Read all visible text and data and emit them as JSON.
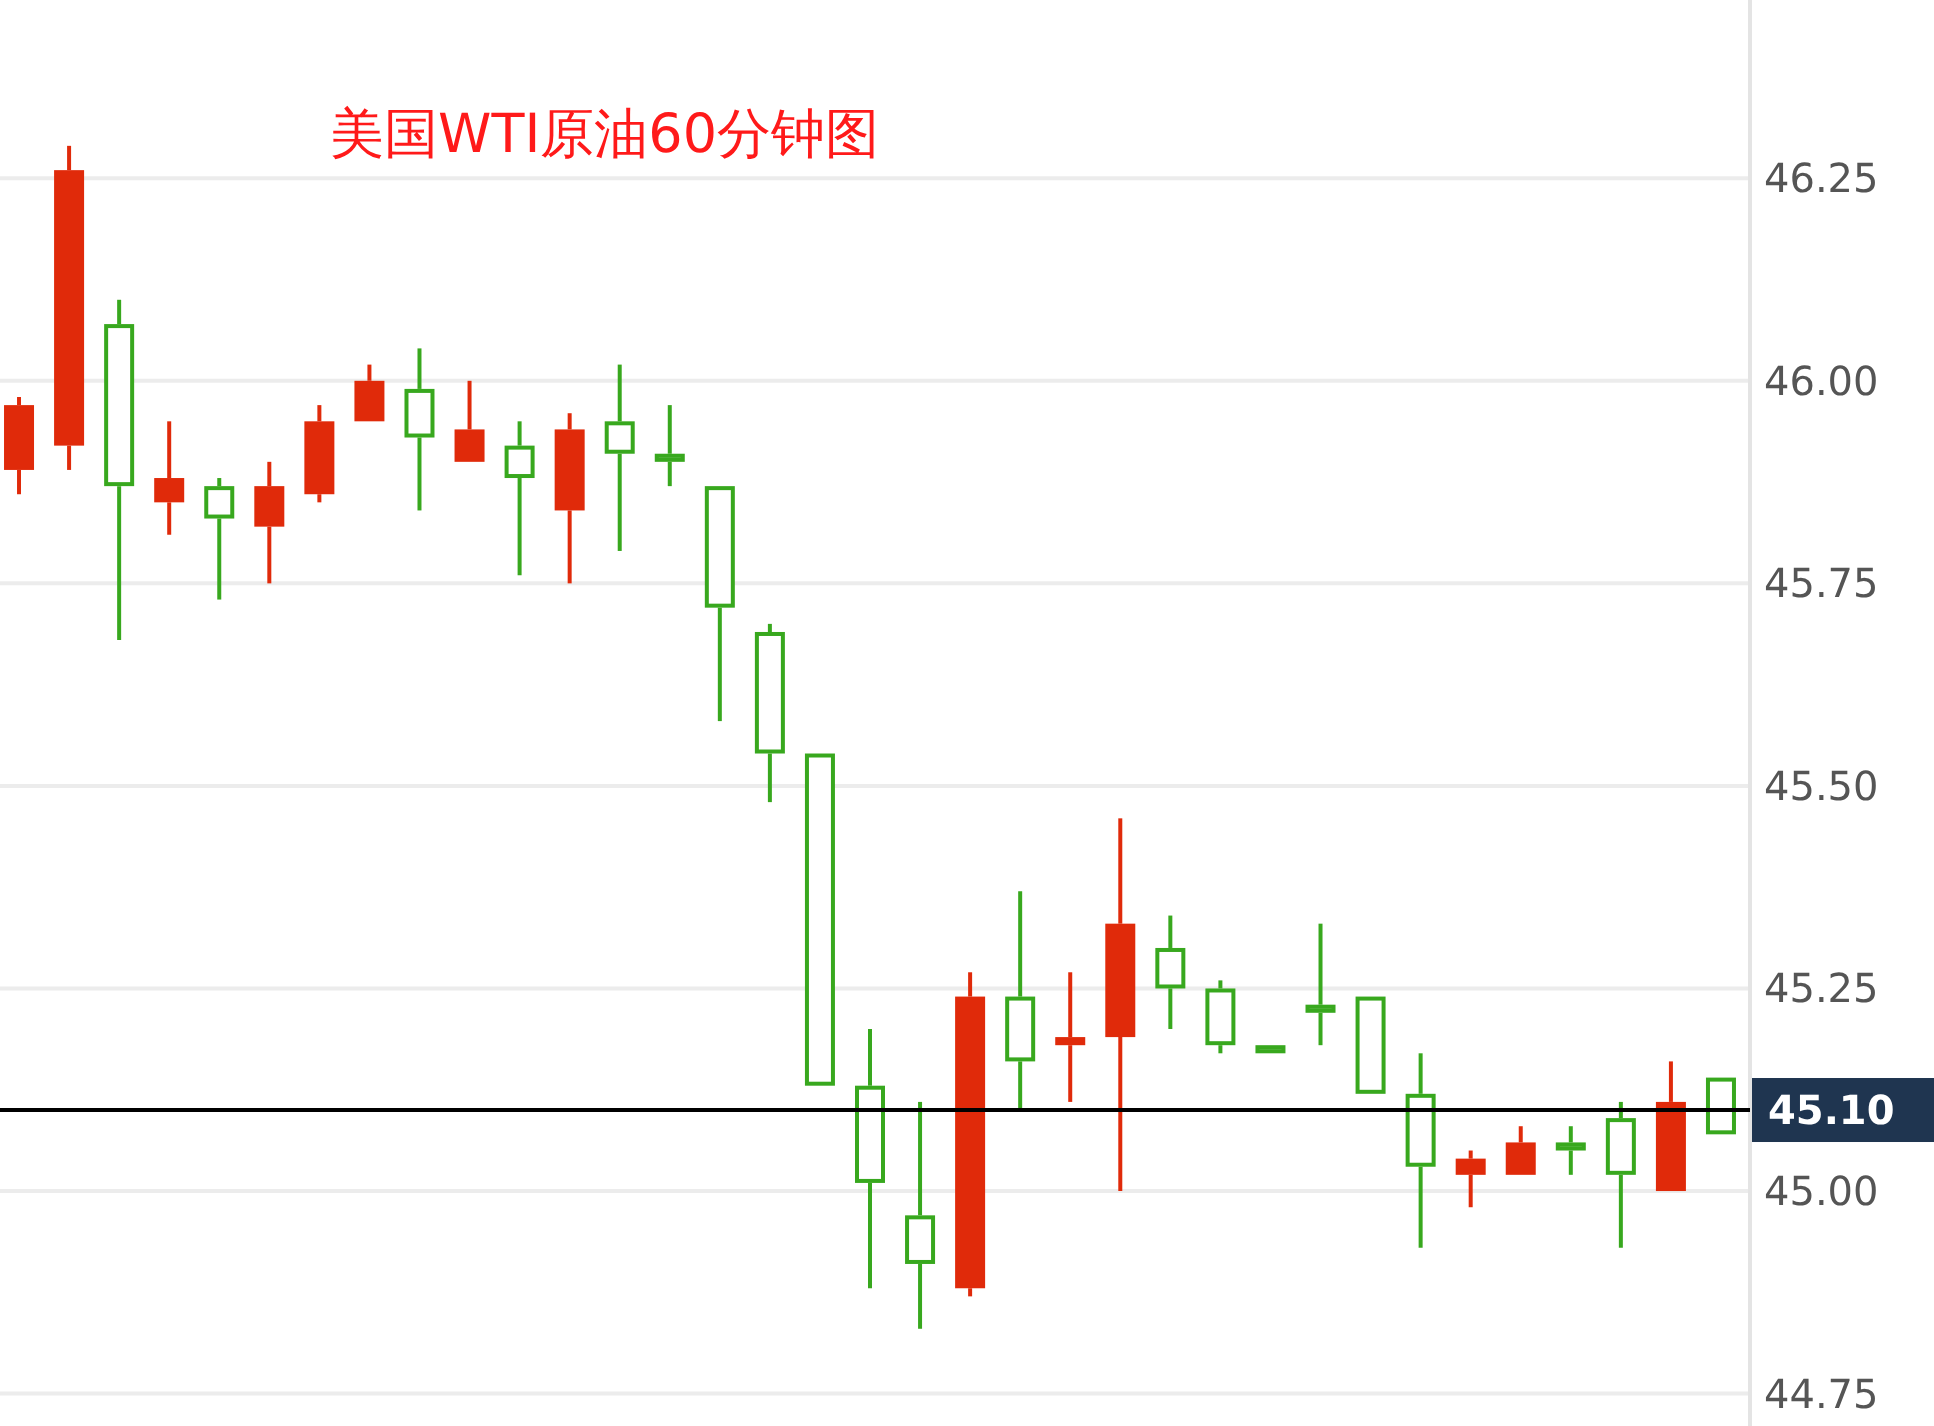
{
  "chart_data": {
    "type": "candlestick",
    "title": "美国WTI原油60分钟图",
    "categories": [
      null,
      null,
      null,
      null,
      null,
      null,
      null,
      null,
      null,
      null,
      null,
      null,
      null,
      null,
      null,
      null,
      null,
      null,
      null,
      null,
      null,
      null,
      null,
      null,
      null,
      null,
      null,
      null,
      null,
      null,
      null,
      null,
      null,
      null,
      null
    ],
    "ohlc": [
      [
        45.89,
        45.98,
        45.86,
        45.97
      ],
      [
        45.92,
        46.29,
        45.89,
        46.26
      ],
      [
        46.07,
        46.1,
        45.68,
        45.87
      ],
      [
        45.85,
        45.95,
        45.81,
        45.88
      ],
      [
        45.87,
        45.88,
        45.73,
        45.83
      ],
      [
        45.82,
        45.9,
        45.75,
        45.87
      ],
      [
        45.86,
        45.97,
        45.85,
        45.95
      ],
      [
        45.95,
        46.02,
        45.95,
        46.0
      ],
      [
        45.99,
        46.04,
        45.84,
        45.93
      ],
      [
        45.9,
        46.0,
        45.9,
        45.94
      ],
      [
        45.92,
        45.95,
        45.76,
        45.88
      ],
      [
        45.84,
        45.96,
        45.75,
        45.94
      ],
      [
        45.95,
        46.02,
        45.79,
        45.91
      ],
      [
        45.91,
        45.97,
        45.87,
        45.9
      ],
      [
        45.87,
        45.87,
        45.58,
        45.72
      ],
      [
        45.69,
        45.7,
        45.48,
        45.54
      ],
      [
        45.54,
        45.54,
        45.13,
        45.13
      ],
      [
        45.13,
        45.2,
        44.88,
        45.01
      ],
      [
        44.97,
        45.11,
        44.83,
        44.91
      ],
      [
        44.88,
        45.27,
        44.87,
        45.24
      ],
      [
        45.24,
        45.37,
        45.1,
        45.16
      ],
      [
        45.18,
        45.27,
        45.11,
        45.19
      ],
      [
        45.19,
        45.46,
        45.0,
        45.33
      ],
      [
        45.3,
        45.34,
        45.2,
        45.25
      ],
      [
        45.25,
        45.26,
        45.17,
        45.18
      ],
      [
        45.18,
        45.18,
        45.17,
        45.17
      ],
      [
        45.23,
        45.33,
        45.18,
        45.22
      ],
      [
        45.24,
        45.24,
        45.12,
        45.12
      ],
      [
        45.12,
        45.17,
        44.93,
        45.03
      ],
      [
        45.02,
        45.05,
        44.98,
        45.04
      ],
      [
        45.02,
        45.08,
        45.02,
        45.06
      ],
      [
        45.06,
        45.08,
        45.02,
        45.05
      ],
      [
        45.09,
        45.11,
        44.93,
        45.02
      ],
      [
        45.0,
        45.16,
        45.0,
        45.11
      ],
      [
        45.14,
        45.14,
        45.07,
        45.07
      ]
    ],
    "colors": [
      "#e02a0a",
      "#e02a0a",
      "#38a81e",
      "#e02a0a",
      "#38a81e",
      "#e02a0a",
      "#e02a0a",
      "#e02a0a",
      "#38a81e",
      "#e02a0a",
      "#38a81e",
      "#e02a0a",
      "#38a81e",
      "#38a81e",
      "#38a81e",
      "#38a81e",
      "#38a81e",
      "#38a81e",
      "#38a81e",
      "#e02a0a",
      "#38a81e",
      "#e02a0a",
      "#e02a0a",
      "#38a81e",
      "#38a81e",
      "#38a81e",
      "#38a81e",
      "#38a81e",
      "#38a81e",
      "#e02a0a",
      "#e02a0a",
      "#38a81e",
      "#38a81e",
      "#e02a0a",
      "#38a81e"
    ],
    "ylim": [
      44.71,
      46.47
    ],
    "yticks": [
      {
        "value": 44.75,
        "label": "44.75"
      },
      {
        "value": 45,
        "label": "45.00"
      },
      {
        "value": 45.25,
        "label": "45.25"
      },
      {
        "value": 45.5,
        "label": "45.50"
      },
      {
        "value": 45.75,
        "label": "45.75"
      },
      {
        "value": 46,
        "label": "46.00"
      },
      {
        "value": 46.25,
        "label": "46.25"
      }
    ],
    "tick_labels": "y",
    "grid": "y",
    "ref_lines": [
      {
        "axis": "y",
        "value": 45.1,
        "label": "45.10",
        "color": "#000000"
      }
    ]
  }
}
